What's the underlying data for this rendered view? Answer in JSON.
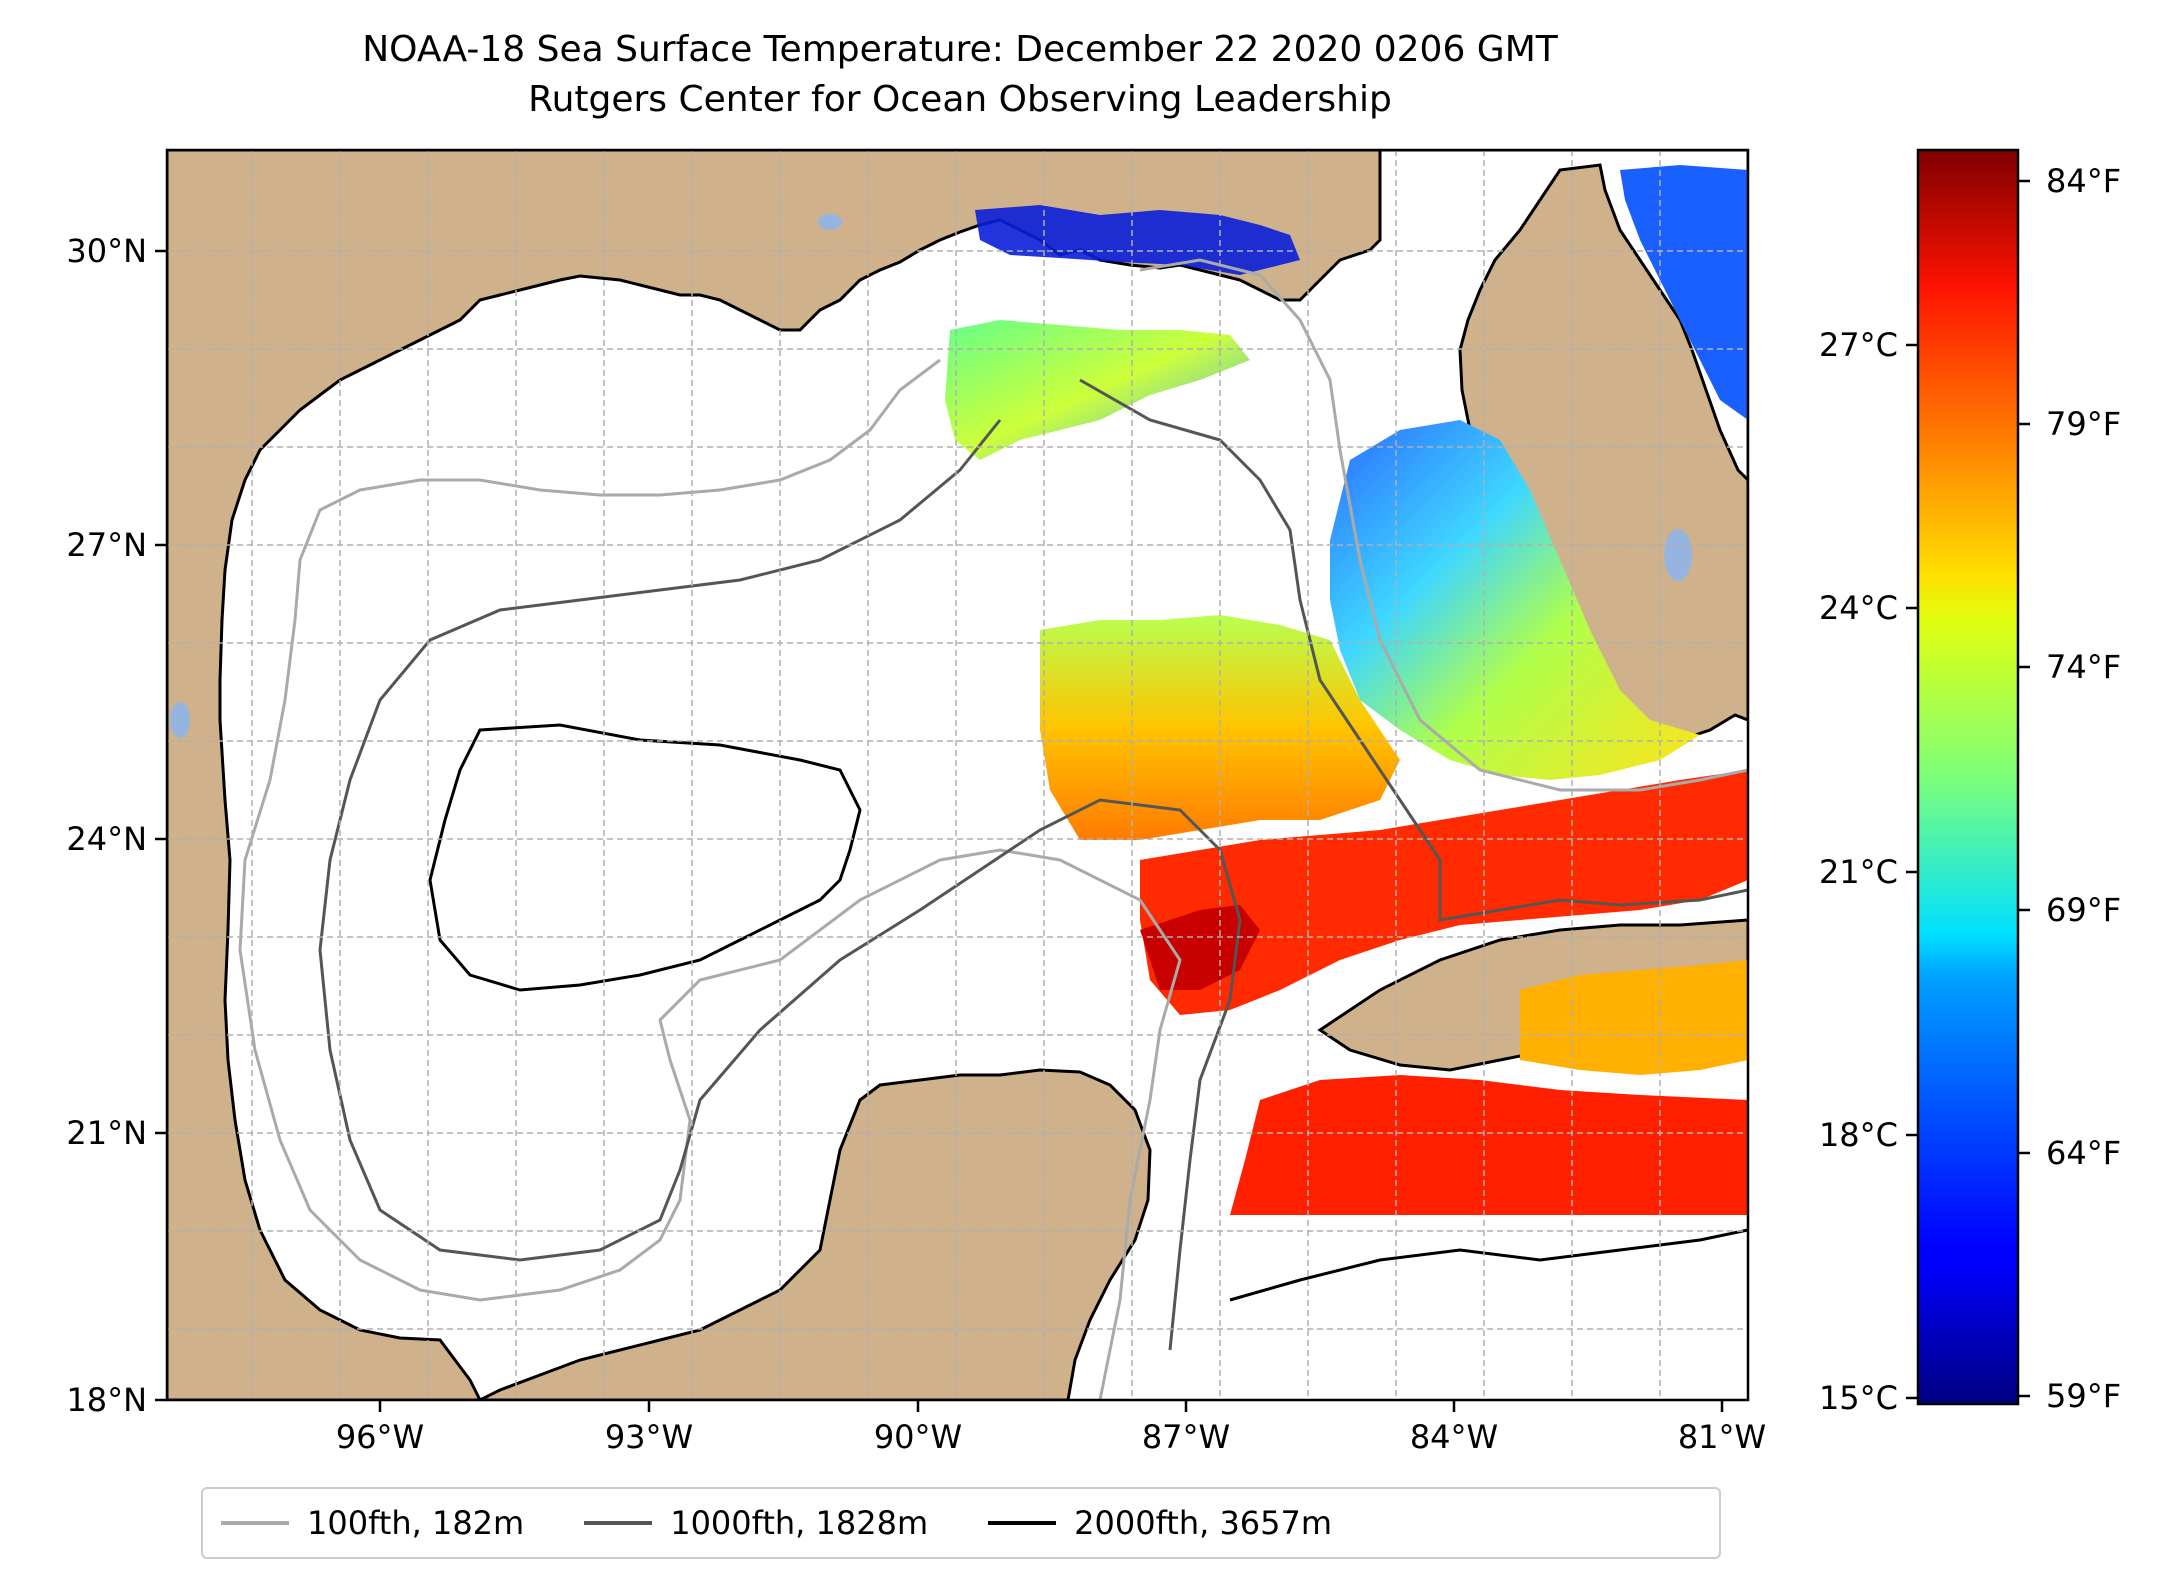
{
  "title": "NOAA-18 Sea Surface Temperature: December 22 2020 0206 GMT",
  "subtitle": "Rutgers Center for Ocean Observing Leadership",
  "map": {
    "lat_labels": [
      "30°N",
      "27°N",
      "24°N",
      "21°N",
      "18°N"
    ],
    "lon_labels": [
      "96°W",
      "93°W",
      "90°W",
      "87°W",
      "84°W",
      "81°W"
    ],
    "land_color": "#cfb28b",
    "water_color": "#ffffff",
    "lake_color": "#96b4e0",
    "grid": true
  },
  "colorbar": {
    "colormap": "jet",
    "celsius_labels": [
      "27°C",
      "24°C",
      "21°C",
      "18°C",
      "15°C"
    ],
    "fahrenheit_labels": [
      "84°F",
      "79°F",
      "74°F",
      "69°F",
      "64°F",
      "59°F"
    ]
  },
  "legend": {
    "items": [
      {
        "label": "100fth, 182m",
        "color": "#aaaaaa"
      },
      {
        "label": "1000fth, 1828m",
        "color": "#555555"
      },
      {
        "label": "2000fth, 3657m",
        "color": "#000000"
      }
    ],
    "placement": "bottom-center"
  }
}
